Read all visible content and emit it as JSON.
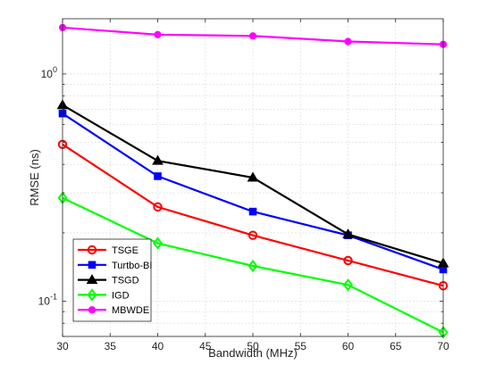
{
  "chart_data": {
    "type": "line",
    "title": "",
    "xlabel": "Bandwidth (MHz)",
    "ylabel": "RMSE (ns)",
    "x": [
      30,
      40,
      50,
      60,
      70
    ],
    "xlim": [
      30,
      70
    ],
    "xticks": [
      30,
      35,
      40,
      45,
      50,
      55,
      60,
      65,
      70
    ],
    "x_tick_labels": [
      "30",
      "35",
      "40",
      "45",
      "50",
      "55",
      "60",
      "65",
      "70"
    ],
    "yscale": "log",
    "ylim": [
      0.07,
      1.75
    ],
    "y_tick_labels": [
      {
        "value": 0.1,
        "base": "10",
        "exp": "-1"
      },
      {
        "value": 1,
        "base": "10",
        "exp": "0"
      }
    ],
    "grid": true,
    "legend_position": "bottom-left",
    "series": [
      {
        "name": "TSGE",
        "color": "#ff0000",
        "marker": "circle",
        "values": [
          0.49,
          0.26,
          0.195,
          0.151,
          0.117
        ]
      },
      {
        "name": "Turtbo-BI",
        "color": "#0000ff",
        "marker": "square",
        "values": [
          0.67,
          0.355,
          0.248,
          0.195,
          0.138
        ]
      },
      {
        "name": "TSGD",
        "color": "#000000",
        "marker": "triangle",
        "values": [
          0.73,
          0.415,
          0.35,
          0.197,
          0.147
        ]
      },
      {
        "name": "IGD",
        "color": "#00ff00",
        "marker": "diamond",
        "values": [
          0.285,
          0.18,
          0.143,
          0.118,
          0.073
        ]
      },
      {
        "name": "MBWDE",
        "color": "#ff00ff",
        "marker": "dot",
        "values": [
          1.6,
          1.49,
          1.47,
          1.39,
          1.35
        ]
      }
    ]
  }
}
